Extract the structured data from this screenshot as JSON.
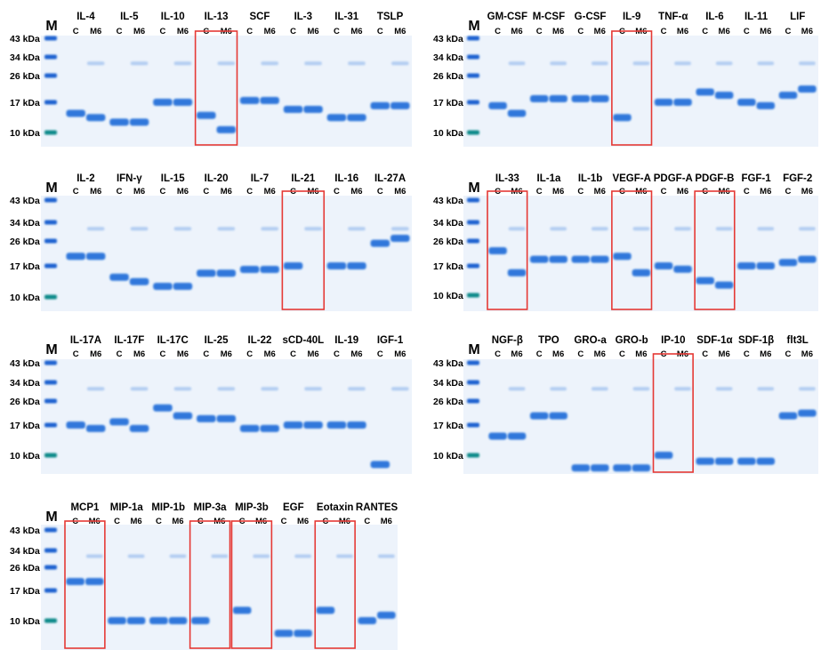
{
  "marker_label": "M",
  "lane_labels": {
    "control": "C",
    "mutant": "M6"
  },
  "colors": {
    "gel_background": "#edf3fb",
    "band": "#1a6ad8",
    "ladder_band": "#1c62d0",
    "ladder_10": "#0d8a8a",
    "highlight_box": "#e53935",
    "text": "#000000"
  },
  "panels": [
    {
      "kda_labels": [
        "43 kDa",
        "34 kDa",
        "26 kDa",
        "17 kDa",
        "10 kDa"
      ],
      "proteins": [
        {
          "name": "IL-4",
          "c": 14,
          "m6": 13,
          "highlighted": false
        },
        {
          "name": "IL-5",
          "c": 12,
          "m6": 12,
          "highlighted": false
        },
        {
          "name": "IL-10",
          "c": 17,
          "m6": 17,
          "highlighted": false
        },
        {
          "name": "IL-13",
          "c": 13.5,
          "m6": 10.5,
          "highlighted": true
        },
        {
          "name": "SCF",
          "c": 17.5,
          "m6": 17.5,
          "highlighted": false
        },
        {
          "name": "IL-3",
          "c": 15,
          "m6": 15,
          "highlighted": false
        },
        {
          "name": "IL-31",
          "c": 13,
          "m6": 13,
          "highlighted": false
        },
        {
          "name": "TSLP",
          "c": 16,
          "m6": 16,
          "highlighted": false
        }
      ]
    },
    {
      "kda_labels": [
        "43 kDa",
        "34 kDa",
        "26 kDa",
        "17 kDa",
        "10 kDa"
      ],
      "proteins": [
        {
          "name": "GM-CSF",
          "c": 16,
          "m6": 14,
          "highlighted": false
        },
        {
          "name": "M-CSF",
          "c": 18,
          "m6": 18,
          "highlighted": false
        },
        {
          "name": "G-CSF",
          "c": 18,
          "m6": 18,
          "highlighted": false
        },
        {
          "name": "IL-9",
          "c": 13,
          "m6": null,
          "highlighted": true
        },
        {
          "name": "TNF-α",
          "c": 17,
          "m6": 17,
          "highlighted": false
        },
        {
          "name": "IL-6",
          "c": 20,
          "m6": 19,
          "highlighted": false
        },
        {
          "name": "IL-11",
          "c": 17,
          "m6": 16,
          "highlighted": false
        },
        {
          "name": "LIF",
          "c": 19,
          "m6": 21,
          "highlighted": false
        }
      ]
    },
    {
      "kda_labels": [
        "43 kDa",
        "34 kDa",
        "26 kDa",
        "17 kDa",
        "10 kDa"
      ],
      "proteins": [
        {
          "name": "IL-2",
          "c": 20,
          "m6": 20,
          "highlighted": false
        },
        {
          "name": "IFN-γ",
          "c": 14,
          "m6": 13,
          "highlighted": false
        },
        {
          "name": "IL-15",
          "c": 12,
          "m6": 12,
          "highlighted": false
        },
        {
          "name": "IL-20",
          "c": 15,
          "m6": 15,
          "highlighted": false
        },
        {
          "name": "IL-7",
          "c": 16,
          "m6": 16,
          "highlighted": false
        },
        {
          "name": "IL-21",
          "c": 17,
          "m6": null,
          "highlighted": true
        },
        {
          "name": "IL-16",
          "c": 17,
          "m6": 17,
          "highlighted": false
        },
        {
          "name": "IL-27A",
          "c": 25,
          "m6": 27,
          "highlighted": false
        }
      ]
    },
    {
      "kda_labels": [
        "43 kDa",
        "34 kDa",
        "26 kDa",
        "17 kDa",
        "10 kDa"
      ],
      "proteins": [
        {
          "name": "IL-33",
          "c": 22,
          "m6": 15,
          "highlighted": true
        },
        {
          "name": "IL-1a",
          "c": 19,
          "m6": 19,
          "highlighted": false
        },
        {
          "name": "IL-1b",
          "c": 19,
          "m6": 19,
          "highlighted": false
        },
        {
          "name": "VEGF-A",
          "c": 20,
          "m6": 15,
          "highlighted": true
        },
        {
          "name": "PDGF-A",
          "c": 17,
          "m6": 16,
          "highlighted": false
        },
        {
          "name": "PDGF-B",
          "c": 13,
          "m6": 12,
          "highlighted": true
        },
        {
          "name": "FGF-1",
          "c": 17,
          "m6": 17,
          "highlighted": false
        },
        {
          "name": "FGF-2",
          "c": 18,
          "m6": 19,
          "highlighted": false
        }
      ]
    },
    {
      "kda_labels": [
        "43 kDa",
        "34 kDa",
        "26 kDa",
        "17 kDa",
        "10 kDa"
      ],
      "proteins": [
        {
          "name": "IL-17A",
          "c": 17,
          "m6": 16,
          "highlighted": false
        },
        {
          "name": "IL-17F",
          "c": 18,
          "m6": 16,
          "highlighted": false
        },
        {
          "name": "IL-17C",
          "c": 23,
          "m6": 20,
          "highlighted": false
        },
        {
          "name": "IL-25",
          "c": 19,
          "m6": 19,
          "highlighted": false
        },
        {
          "name": "IL-22",
          "c": 16,
          "m6": 16,
          "highlighted": false
        },
        {
          "name": "sCD-40L",
          "c": 17,
          "m6": 17,
          "highlighted": false
        },
        {
          "name": "IL-19",
          "c": 17,
          "m6": 17,
          "highlighted": false
        },
        {
          "name": "IGF-1",
          "c": 8.5,
          "m6": null,
          "highlighted": false
        }
      ]
    },
    {
      "kda_labels": [
        "43 kDa",
        "34 kDa",
        "26 kDa",
        "17 kDa",
        "10 kDa"
      ],
      "proteins": [
        {
          "name": "NGF-β",
          "c": 14,
          "m6": 14,
          "highlighted": false
        },
        {
          "name": "TPO",
          "c": 20,
          "m6": 20,
          "highlighted": false
        },
        {
          "name": "GRO-a",
          "c": 8,
          "m6": 8,
          "highlighted": false
        },
        {
          "name": "GRO-b",
          "c": 8,
          "m6": 8,
          "highlighted": false
        },
        {
          "name": "IP-10",
          "c": 10,
          "m6": null,
          "highlighted": true
        },
        {
          "name": "SDF-1α",
          "c": 9,
          "m6": 9,
          "highlighted": false
        },
        {
          "name": "SDF-1β",
          "c": 9,
          "m6": 9,
          "highlighted": false
        },
        {
          "name": "flt3L",
          "c": 20,
          "m6": 21,
          "highlighted": false
        }
      ]
    },
    {
      "kda_labels": [
        "43 kDa",
        "34 kDa",
        "26 kDa",
        "17 kDa",
        "10 kDa"
      ],
      "proteins": [
        {
          "name": "MCP1",
          "c": 20,
          "m6": 20,
          "highlighted": true
        },
        {
          "name": "MIP-1a",
          "c": 10,
          "m6": 10,
          "highlighted": false
        },
        {
          "name": "MIP-1b",
          "c": 10,
          "m6": 10,
          "highlighted": false
        },
        {
          "name": "MIP-3a",
          "c": 10,
          "m6": null,
          "highlighted": true
        },
        {
          "name": "MIP-3b",
          "c": 12,
          "m6": null,
          "highlighted": true
        },
        {
          "name": "EGF",
          "c": 8,
          "m6": 8,
          "highlighted": false
        },
        {
          "name": "Eotaxin",
          "c": 12,
          "m6": null,
          "highlighted": true
        },
        {
          "name": "RANTES",
          "c": 10,
          "m6": 11,
          "highlighted": false
        }
      ]
    }
  ]
}
